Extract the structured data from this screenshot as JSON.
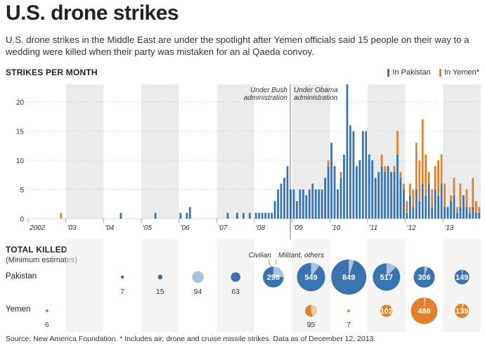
{
  "title": "U.S. drone strikes",
  "subtitle": "U.S. drone strikes in the Middle East are under the spotlight after Yemen officials said 15 people on their way to a wedding were killed when their party was mistaken for an al Qaeda convoy.",
  "legend": {
    "pakistan": "In Pakistan",
    "yemen": "In Yemen*"
  },
  "colors": {
    "pakistan": "#3a74b0",
    "yemen": "#e0812d",
    "pakistan_light": "#a9c3df",
    "yemen_light": "#f3c9a0",
    "shade": "#ebebeb",
    "grid": "#bbbbbb"
  },
  "annotations": {
    "bush": [
      "Under Bush",
      "administration"
    ],
    "obama": [
      "Under Obama",
      "administration"
    ],
    "civilian": "Civilian",
    "militant": "Militant, others"
  },
  "killed": {
    "title": "TOTAL KILLED",
    "subtitle": "(Minimum estimates)",
    "pakistan_label": "Pakistan",
    "yemen_label": "Yemen"
  },
  "source": "Source: New America Foundation. * Includes air, drone and cruise missile strikes.   Data as of December 12, 2013.",
  "chart_data": [
    {
      "type": "bar",
      "title": "STRIKES PER MONTH",
      "xlabel": "",
      "ylabel": "",
      "ylim": [
        0,
        23
      ],
      "yticks": [
        0,
        5,
        10,
        15,
        20
      ],
      "grid": true,
      "years": [
        "2002",
        "'03",
        "'04",
        "'05",
        "'06",
        "'07",
        "'08",
        "'09",
        "'10",
        "'11",
        "'12",
        "'13"
      ],
      "series": [
        {
          "name": "In Pakistan",
          "values": [
            0,
            0,
            0,
            0,
            0,
            0,
            0,
            0,
            0,
            0,
            0,
            0,
            0,
            0,
            0,
            0,
            0,
            0,
            0,
            0,
            0,
            0,
            0,
            0,
            0,
            0,
            0,
            0,
            0,
            1,
            0,
            0,
            0,
            0,
            0,
            0,
            0,
            0,
            0,
            0,
            1,
            0,
            0,
            0,
            0,
            0,
            0,
            0,
            1,
            0,
            1,
            2,
            0,
            0,
            0,
            0,
            0,
            0,
            0,
            0,
            0,
            0,
            0,
            1,
            0,
            0,
            1,
            0,
            1,
            0,
            1,
            0,
            1,
            1,
            1,
            1,
            1,
            1,
            3,
            5,
            6,
            7,
            9,
            5,
            5,
            3,
            5,
            5,
            4,
            5,
            6,
            5,
            5,
            5,
            7,
            9,
            13,
            9,
            5,
            7,
            11,
            23,
            16,
            15,
            9,
            10,
            15,
            15,
            11,
            10,
            7,
            8,
            9,
            8,
            9,
            8,
            8,
            11,
            7,
            5,
            1,
            4,
            2,
            5,
            3,
            6,
            4,
            6,
            2,
            5,
            4,
            6,
            2,
            2,
            3,
            4,
            1,
            2,
            4,
            2,
            1,
            2,
            1,
            1
          ]
        },
        {
          "name": "In Yemen*",
          "values": [
            0,
            0,
            0,
            0,
            0,
            0,
            0,
            0,
            0,
            0,
            1,
            0,
            0,
            0,
            0,
            0,
            0,
            0,
            0,
            0,
            0,
            0,
            0,
            0,
            0,
            0,
            0,
            0,
            0,
            0,
            0,
            0,
            0,
            0,
            0,
            0,
            0,
            0,
            0,
            0,
            0,
            0,
            0,
            0,
            0,
            0,
            0,
            0,
            0,
            0,
            0,
            0,
            0,
            0,
            0,
            0,
            0,
            0,
            0,
            0,
            0,
            0,
            0,
            0,
            0,
            0,
            0,
            0,
            0,
            0,
            0,
            0,
            0,
            0,
            0,
            0,
            0,
            0,
            0,
            0,
            0,
            0,
            0,
            0,
            0,
            0,
            0,
            0,
            0,
            0,
            0,
            0,
            0,
            0,
            0,
            1,
            0,
            0,
            0,
            1,
            0,
            0,
            0,
            0,
            0,
            0,
            0,
            0,
            0,
            0,
            0,
            0,
            2,
            1,
            0,
            0,
            1,
            4,
            1,
            1,
            2,
            2,
            3,
            8,
            7,
            11,
            7,
            2,
            3,
            4,
            6,
            5,
            4,
            0,
            1,
            3,
            1,
            4,
            0,
            3,
            1,
            5,
            2,
            1
          ]
        }
      ]
    },
    {
      "type": "bubble",
      "title": "TOTAL KILLED (Minimum estimates)",
      "categories": [
        "2002",
        "2003",
        "2004",
        "2005",
        "2006",
        "2007",
        "2008",
        "2009",
        "2010",
        "2011",
        "2012",
        "2013"
      ],
      "series": [
        {
          "name": "Pakistan",
          "values": [
            0,
            0,
            7,
            15,
            94,
            63,
            298,
            549,
            849,
            517,
            306,
            149
          ],
          "civilian_share": [
            0,
            0,
            0,
            0,
            1,
            0,
            0.25,
            0.1,
            0.05,
            0.12,
            0.06,
            0.03
          ],
          "labels_inside": [
            false,
            false,
            false,
            false,
            false,
            false,
            true,
            true,
            true,
            true,
            true,
            true
          ]
        },
        {
          "name": "Yemen",
          "values": [
            6,
            0,
            0,
            0,
            0,
            0,
            0,
            95,
            7,
            102,
            486,
            139
          ],
          "civilian_share": [
            0,
            0,
            0,
            0,
            0,
            0,
            0,
            0.45,
            0.3,
            0.02,
            0.02,
            0.05
          ],
          "labels_inside": [
            false,
            false,
            false,
            false,
            false,
            false,
            false,
            false,
            false,
            true,
            true,
            true
          ]
        }
      ]
    }
  ]
}
